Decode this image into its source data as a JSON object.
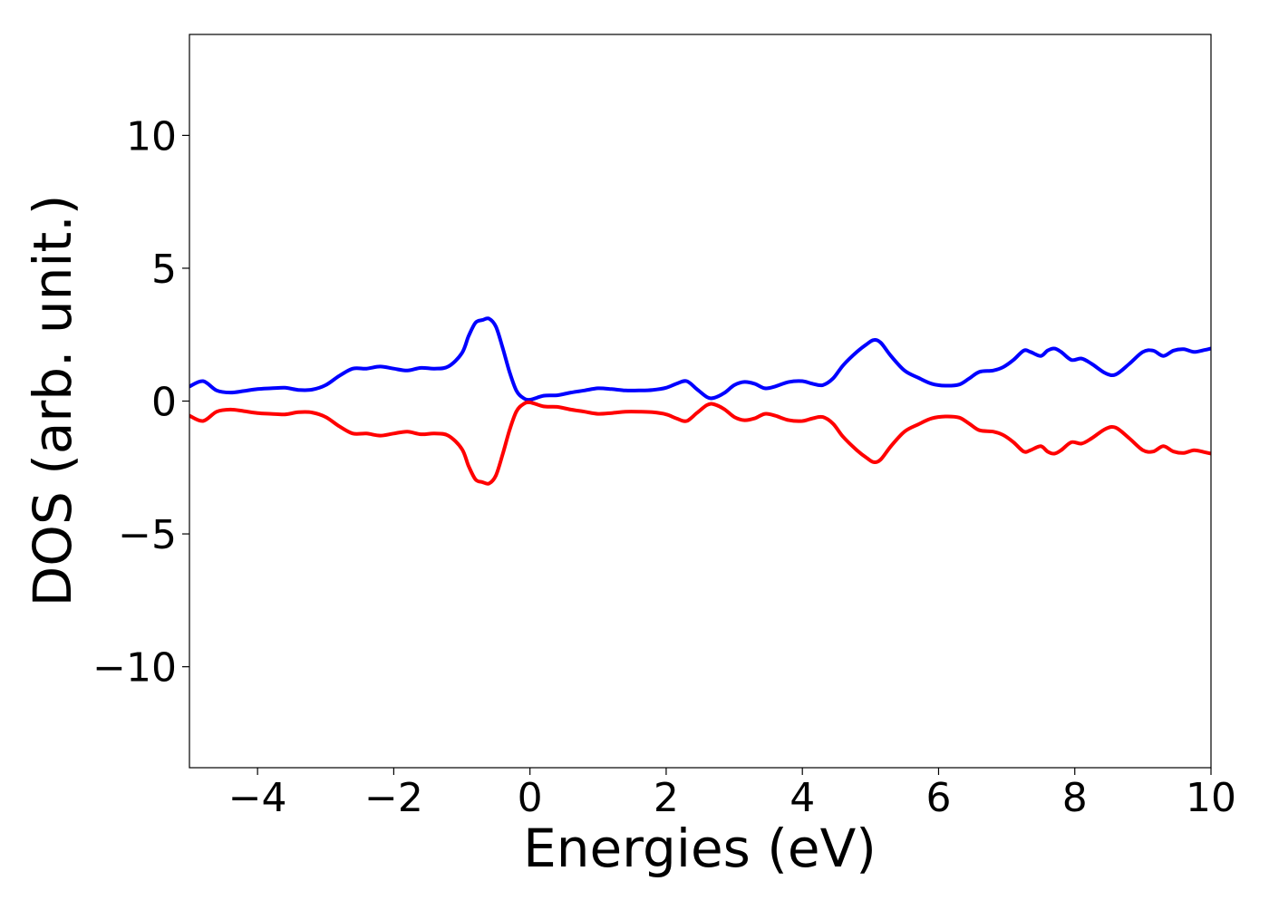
{
  "chart_data": {
    "type": "line",
    "title": "",
    "xlabel": "Energies (eV)",
    "ylabel": "DOS (arb. unit.)",
    "xlim": [
      -5,
      10
    ],
    "ylim": [
      -13.8,
      13.8
    ],
    "x_ticks": [
      -4,
      -2,
      0,
      2,
      4,
      6,
      8,
      10
    ],
    "x_tick_labels": [
      "−4",
      "−2",
      "0",
      "2",
      "4",
      "6",
      "8",
      "10"
    ],
    "y_ticks": [
      -10,
      -5,
      0,
      5,
      10
    ],
    "y_tick_labels": [
      "−10",
      "−5",
      "0",
      "5",
      "10"
    ],
    "grid": false,
    "legend": "none",
    "x": [
      -5.0,
      -4.8,
      -4.6,
      -4.4,
      -4.2,
      -4.0,
      -3.8,
      -3.6,
      -3.4,
      -3.2,
      -3.0,
      -2.8,
      -2.6,
      -2.4,
      -2.2,
      -2.0,
      -1.8,
      -1.6,
      -1.4,
      -1.2,
      -1.0,
      -0.9,
      -0.8,
      -0.7,
      -0.6,
      -0.5,
      -0.4,
      -0.3,
      -0.2,
      -0.1,
      0.0,
      0.2,
      0.4,
      0.6,
      0.8,
      1.0,
      1.2,
      1.4,
      1.6,
      1.8,
      2.0,
      2.15,
      2.3,
      2.45,
      2.6,
      2.7,
      2.85,
      3.0,
      3.15,
      3.3,
      3.45,
      3.6,
      3.8,
      4.0,
      4.15,
      4.3,
      4.45,
      4.6,
      4.8,
      4.95,
      5.05,
      5.15,
      5.3,
      5.5,
      5.7,
      5.9,
      6.1,
      6.3,
      6.45,
      6.6,
      6.8,
      6.95,
      7.1,
      7.25,
      7.35,
      7.5,
      7.6,
      7.7,
      7.8,
      7.95,
      8.1,
      8.25,
      8.45,
      8.6,
      8.8,
      9.0,
      9.15,
      9.3,
      9.45,
      9.6,
      9.75,
      9.9,
      10.0
    ],
    "series": [
      {
        "color": "#0000ff",
        "values": [
          0.55,
          0.75,
          0.4,
          0.32,
          0.38,
          0.45,
          0.48,
          0.5,
          0.42,
          0.43,
          0.6,
          0.95,
          1.22,
          1.22,
          1.3,
          1.22,
          1.15,
          1.25,
          1.22,
          1.3,
          1.8,
          2.45,
          2.95,
          3.05,
          3.1,
          2.8,
          2.0,
          1.1,
          0.4,
          0.12,
          0.05,
          0.2,
          0.22,
          0.32,
          0.4,
          0.48,
          0.45,
          0.4,
          0.4,
          0.42,
          0.5,
          0.65,
          0.75,
          0.45,
          0.15,
          0.12,
          0.3,
          0.6,
          0.72,
          0.65,
          0.48,
          0.55,
          0.72,
          0.75,
          0.65,
          0.6,
          0.85,
          1.35,
          1.85,
          2.15,
          2.3,
          2.2,
          1.7,
          1.15,
          0.88,
          0.65,
          0.58,
          0.62,
          0.85,
          1.1,
          1.15,
          1.28,
          1.55,
          1.9,
          1.85,
          1.7,
          1.9,
          1.98,
          1.85,
          1.55,
          1.6,
          1.4,
          1.05,
          1.0,
          1.4,
          1.85,
          1.9,
          1.7,
          1.9,
          1.95,
          1.85,
          1.92,
          1.98
        ]
      },
      {
        "color": "#ff0000",
        "values": [
          -0.55,
          -0.75,
          -0.4,
          -0.32,
          -0.38,
          -0.45,
          -0.48,
          -0.5,
          -0.42,
          -0.43,
          -0.6,
          -0.95,
          -1.22,
          -1.22,
          -1.3,
          -1.22,
          -1.15,
          -1.25,
          -1.22,
          -1.3,
          -1.8,
          -2.45,
          -2.95,
          -3.05,
          -3.1,
          -2.8,
          -2.0,
          -1.1,
          -0.4,
          -0.12,
          -0.05,
          -0.2,
          -0.22,
          -0.32,
          -0.4,
          -0.48,
          -0.45,
          -0.4,
          -0.4,
          -0.42,
          -0.5,
          -0.65,
          -0.75,
          -0.45,
          -0.15,
          -0.12,
          -0.3,
          -0.6,
          -0.72,
          -0.65,
          -0.48,
          -0.55,
          -0.72,
          -0.75,
          -0.65,
          -0.6,
          -0.85,
          -1.35,
          -1.85,
          -2.15,
          -2.3,
          -2.2,
          -1.7,
          -1.15,
          -0.88,
          -0.65,
          -0.58,
          -0.62,
          -0.85,
          -1.1,
          -1.15,
          -1.28,
          -1.55,
          -1.9,
          -1.85,
          -1.7,
          -1.9,
          -1.98,
          -1.85,
          -1.55,
          -1.6,
          -1.4,
          -1.05,
          -1.0,
          -1.4,
          -1.85,
          -1.9,
          -1.7,
          -1.9,
          -1.95,
          -1.85,
          -1.92,
          -1.98
        ]
      }
    ]
  }
}
